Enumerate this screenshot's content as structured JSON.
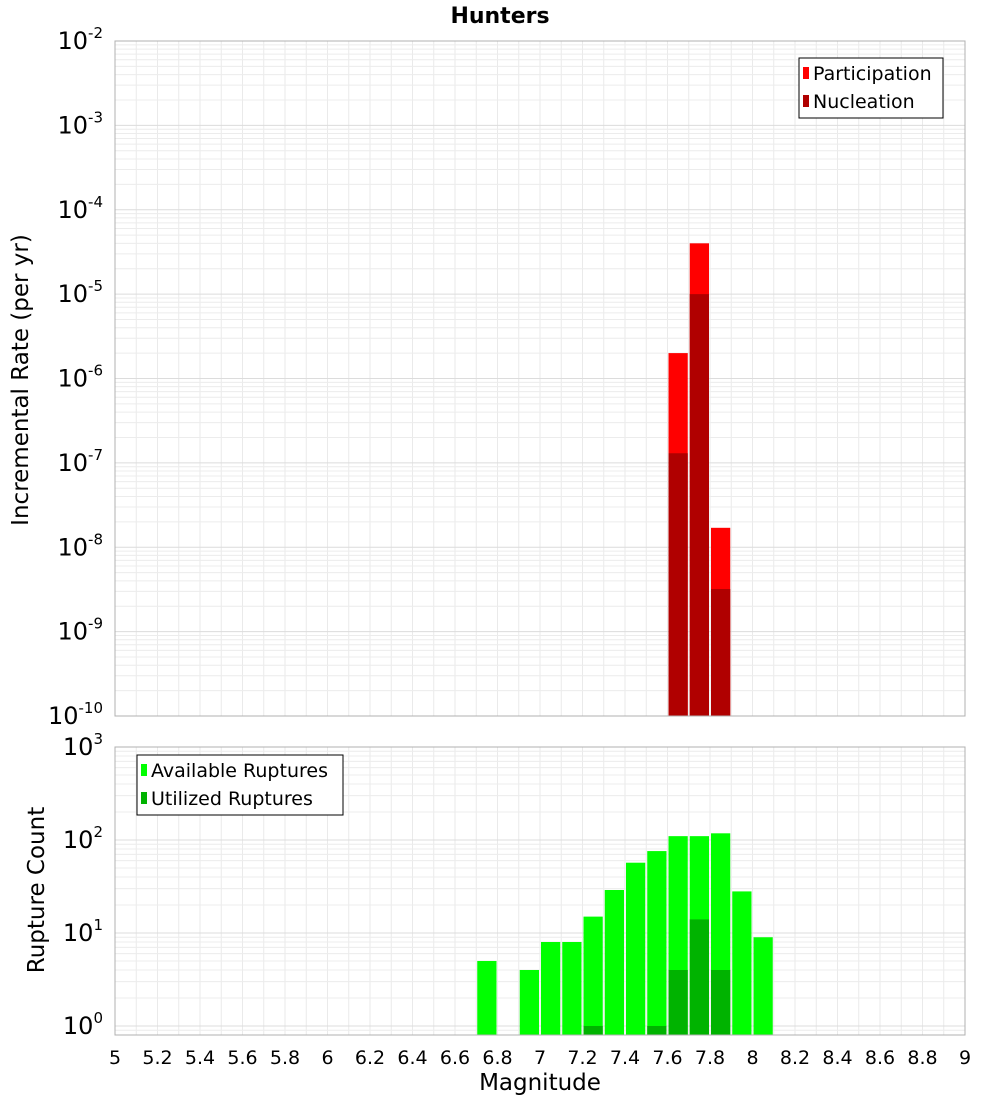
{
  "chart_data": [
    {
      "type": "bar",
      "title": "Hunters",
      "ylabel": "Incremental Rate (per yr)",
      "xlabel": "",
      "yscale": "log",
      "ylim": [
        1e-10,
        0.01
      ],
      "xlim": [
        5,
        9
      ],
      "y_tick_exponents": [
        -10,
        -9,
        -8,
        -7,
        -6,
        -5,
        -4,
        -3,
        -2
      ],
      "grid": true,
      "legend_position": "top-right",
      "bar_width": 0.1,
      "x": [
        7.65,
        7.75,
        7.85
      ],
      "series": [
        {
          "name": "Participation",
          "color": "#ff0000",
          "values": [
            2e-06,
            4e-05,
            1.7e-08
          ]
        },
        {
          "name": "Nucleation",
          "color": "#b00000",
          "values": [
            1.3e-07,
            1e-05,
            3.2e-09
          ]
        }
      ]
    },
    {
      "type": "bar",
      "title": "",
      "ylabel": "Rupture Count",
      "xlabel": "Magnitude",
      "yscale": "log",
      "ylim": [
        0.8,
        1000
      ],
      "xlim": [
        5,
        9
      ],
      "y_tick_exponents": [
        0,
        1,
        2,
        3
      ],
      "x_ticks": [
        "5",
        "5.2",
        "5.4",
        "5.6",
        "5.8",
        "6",
        "6.2",
        "6.4",
        "6.6",
        "6.8",
        "7",
        "7.2",
        "7.4",
        "7.6",
        "7.8",
        "8",
        "8.2",
        "8.4",
        "8.6",
        "8.8",
        "9"
      ],
      "grid": true,
      "legend_position": "top-left",
      "bar_width": 0.1,
      "x": [
        6.75,
        6.95,
        7.05,
        7.15,
        7.25,
        7.35,
        7.45,
        7.55,
        7.65,
        7.75,
        7.85,
        7.95,
        8.05
      ],
      "series": [
        {
          "name": "Available Ruptures",
          "color": "#00ff00",
          "values": [
            5,
            4,
            8,
            8,
            15,
            29,
            57,
            76,
            110,
            110,
            118,
            28,
            9
          ]
        },
        {
          "name": "Utilized Ruptures",
          "color": "#00b300",
          "values": [
            null,
            null,
            null,
            null,
            1,
            null,
            null,
            1,
            4,
            14,
            4,
            null,
            null
          ]
        }
      ]
    }
  ]
}
